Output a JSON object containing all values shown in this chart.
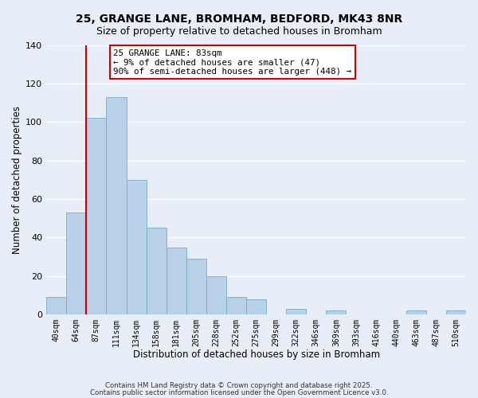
{
  "title_line1": "25, GRANGE LANE, BROMHAM, BEDFORD, MK43 8NR",
  "title_line2": "Size of property relative to detached houses in Bromham",
  "xlabel": "Distribution of detached houses by size in Bromham",
  "ylabel": "Number of detached properties",
  "bar_labels": [
    "40sqm",
    "64sqm",
    "87sqm",
    "111sqm",
    "134sqm",
    "158sqm",
    "181sqm",
    "205sqm",
    "228sqm",
    "252sqm",
    "275sqm",
    "299sqm",
    "322sqm",
    "346sqm",
    "369sqm",
    "393sqm",
    "416sqm",
    "440sqm",
    "463sqm",
    "487sqm",
    "510sqm"
  ],
  "bar_values": [
    9,
    53,
    102,
    113,
    70,
    45,
    35,
    29,
    20,
    9,
    8,
    0,
    3,
    0,
    2,
    0,
    0,
    0,
    2,
    0,
    2
  ],
  "bar_color": "#b8d0e8",
  "bar_edge_color": "#7aacc8",
  "vline_color": "#cc0000",
  "ylim": [
    0,
    140
  ],
  "yticks": [
    0,
    20,
    40,
    60,
    80,
    100,
    120,
    140
  ],
  "annotation_box_title": "25 GRANGE LANE: 83sqm",
  "annotation_line1": "← 9% of detached houses are smaller (47)",
  "annotation_line2": "90% of semi-detached houses are larger (448) →",
  "annotation_box_color": "#ffffff",
  "annotation_box_edge": "#cc0000",
  "footer_line1": "Contains HM Land Registry data © Crown copyright and database right 2025.",
  "footer_line2": "Contains public sector information licensed under the Open Government Licence v3.0.",
  "background_color": "#e8eef8"
}
